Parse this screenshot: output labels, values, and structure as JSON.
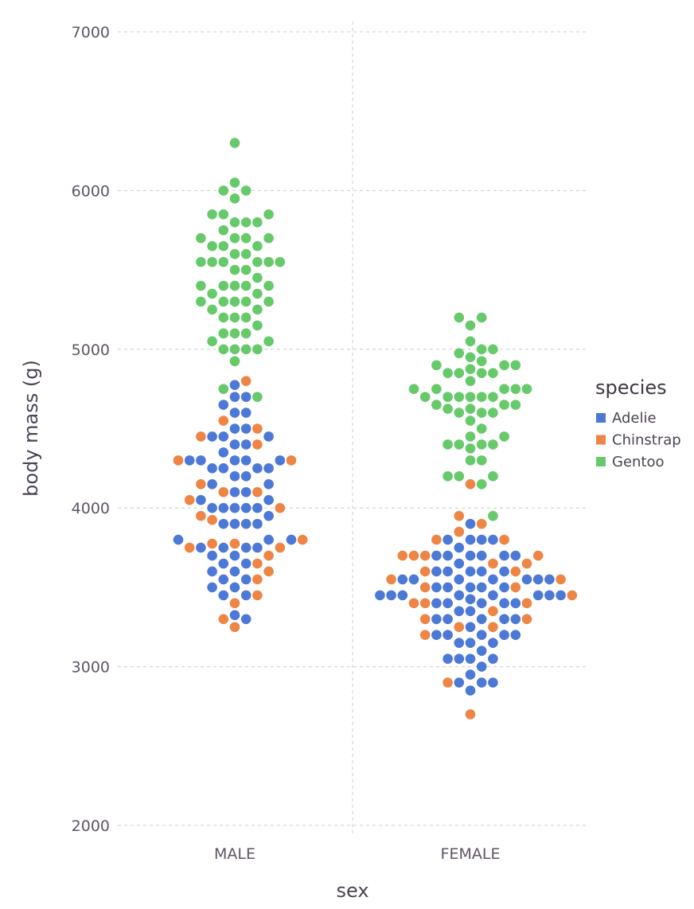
{
  "chart_data": {
    "type": "scatter",
    "subtype": "beeswarm",
    "xlabel": "sex",
    "ylabel": "body mass (g)",
    "categories": [
      "MALE",
      "FEMALE"
    ],
    "ylim": [
      2000,
      7000
    ],
    "yticks": [
      "2000",
      "3000",
      "4000",
      "5000",
      "6000",
      "7000"
    ],
    "grid": true,
    "legend": {
      "title": "species",
      "placement": "right",
      "entries": [
        {
          "name": "Adelie",
          "color": "#4c78d6"
        },
        {
          "name": "Chinstrap",
          "color": "#ee8545"
        },
        {
          "name": "Gentoo",
          "color": "#66c96a"
        }
      ]
    },
    "series": [
      {
        "name": "Adelie",
        "color": "#4c78d6",
        "MALE": [
          3325,
          3450,
          3500,
          3550,
          3650,
          3700,
          3750,
          3800,
          3900,
          4000,
          4050,
          4150,
          4200,
          4250,
          4300,
          4350,
          4400,
          4450,
          4500,
          4600,
          4650,
          4700,
          4775,
          3300,
          3450,
          3500,
          3550,
          3600,
          3650,
          3700,
          3750,
          3800,
          3900,
          3950,
          4000,
          4100,
          4150,
          4200,
          4250,
          4300,
          4400,
          4450,
          4600,
          4700,
          3600,
          3750,
          3800,
          3900,
          4000,
          4050,
          4100,
          4250,
          4300,
          4450,
          4500,
          3750,
          3900,
          4000,
          4250,
          4000,
          4300,
          4300
        ],
        "FEMALE": [
          2850,
          2900,
          2950,
          3000,
          3050,
          3100,
          3150,
          3200,
          3250,
          3300,
          3350,
          3400,
          3450,
          3500,
          3550,
          3600,
          3650,
          3700,
          3750,
          3800,
          3900,
          2900,
          3050,
          3150,
          3200,
          3300,
          3350,
          3400,
          3450,
          3500,
          3550,
          3600,
          3700,
          3800,
          2900,
          3050,
          3150,
          3200,
          3300,
          3400,
          3450,
          3500,
          3550,
          3600,
          3700,
          3800,
          3300,
          3400,
          3500,
          3550,
          3600,
          3700,
          3800,
          3450,
          3550,
          3600,
          3700,
          3450,
          3450,
          3400,
          3550,
          3200,
          3050,
          3200,
          3300,
          3500,
          3450,
          3550,
          3450,
          3700,
          3425
        ]
      },
      {
        "name": "Chinstrap",
        "color": "#ee8545",
        "MALE": [
          3250,
          3400,
          3700,
          3800,
          3950,
          4050,
          4400,
          4550,
          4800,
          3300,
          3450,
          3650,
          3750,
          3925,
          4100,
          4450,
          3550,
          3600,
          3775,
          4150,
          3775,
          4500,
          3750,
          4100,
          4000,
          4300,
          4300
        ],
        "FEMALE": [
          2700,
          3300,
          3350,
          3650,
          3800,
          3850,
          4150,
          2900,
          3250,
          3400,
          3550,
          3600,
          3700,
          3900,
          3950,
          3200,
          3250,
          3400,
          3600,
          3700,
          3500,
          3500,
          3650,
          3300,
          3400,
          3800,
          3550,
          3450,
          3700,
          3700
        ]
      },
      {
        "name": "Gentoo",
        "color": "#66c96a",
        "MALE": [
          4925,
          5050,
          5150,
          5300,
          5400,
          5500,
          5550,
          5650,
          5700,
          5800,
          5950,
          6050,
          4750,
          5000,
          5100,
          5200,
          5300,
          5400,
          5600,
          5750,
          5850,
          6000,
          5000,
          5100,
          5250,
          5350,
          5500,
          5650,
          5800,
          6000,
          4700,
          5000,
          5200,
          5300,
          5450,
          5550,
          5650,
          5800,
          5050,
          5250,
          5350,
          5550,
          5700,
          5850,
          5100,
          5200,
          5400,
          5550,
          5700,
          5000,
          5300,
          5400,
          5600,
          5300,
          5550,
          5700,
          5550,
          5850,
          5400,
          6300
        ],
        "FEMALE": [
          4150,
          4300,
          4375,
          4450,
          4550,
          4625,
          4700,
          4750,
          4850,
          4925,
          5000,
          5150,
          4200,
          4300,
          4400,
          4500,
          4600,
          4700,
          4800,
          4900,
          5050,
          5200,
          4200,
          4400,
          4650,
          4850,
          4975,
          5200,
          4400,
          4600,
          4700,
          4750,
          4850,
          4950,
          4400,
          4625,
          4700,
          4875,
          5000,
          4450,
          4650,
          4750,
          4850,
          4200,
          4600,
          4700,
          4900,
          4650,
          4750,
          4900,
          4750,
          4700,
          3950
        ]
      }
    ]
  }
}
